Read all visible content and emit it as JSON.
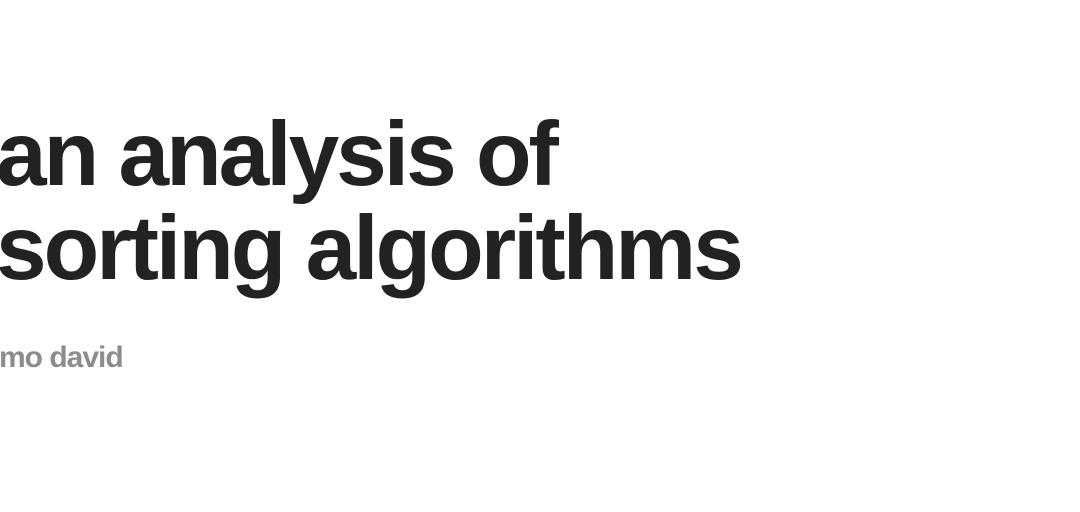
{
  "slide": {
    "title_line_1": "an analysis of",
    "title_line_2": "sorting algorithms",
    "author": "mo david"
  },
  "colors": {
    "background": "#ffffff",
    "title": "#222222",
    "author": "#8c8c8c"
  }
}
